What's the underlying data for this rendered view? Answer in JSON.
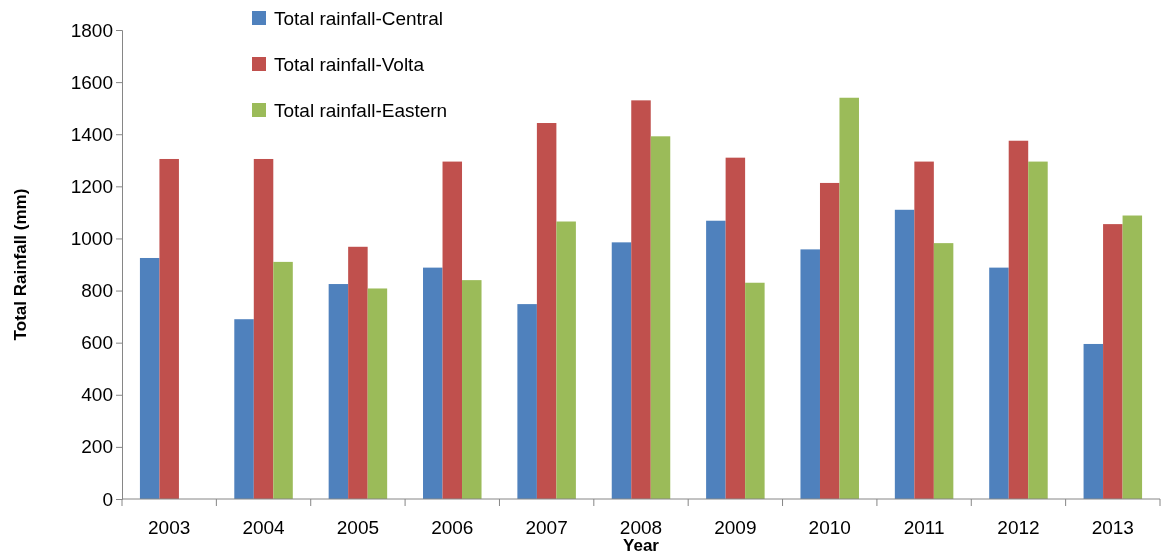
{
  "chart_data": {
    "type": "bar",
    "xlabel": "Year",
    "ylabel": "Total Rainfall (mm)",
    "categories": [
      "2003",
      "2004",
      "2005",
      "2006",
      "2007",
      "2008",
      "2009",
      "2010",
      "2011",
      "2012",
      "2013"
    ],
    "series": [
      {
        "name": "Total rainfall-Central",
        "color": "#4f81bd",
        "values": [
          925,
          690,
          825,
          888,
          748,
          985,
          1068,
          958,
          1110,
          888,
          595
        ]
      },
      {
        "name": "Total rainfall-Volta",
        "color": "#c0504d",
        "values": [
          1305,
          1305,
          968,
          1295,
          1443,
          1530,
          1310,
          1213,
          1295,
          1375,
          1055
        ]
      },
      {
        "name": "Total rainfall-Eastern",
        "color": "#9bbb59",
        "values": [
          null,
          910,
          808,
          840,
          1065,
          1392,
          830,
          1540,
          982,
          1295,
          1088
        ]
      }
    ],
    "ylim": [
      0,
      1800
    ],
    "yticks": [
      0,
      200,
      400,
      600,
      800,
      1000,
      1200,
      1400,
      1600,
      1800
    ],
    "grid": false,
    "legend": "top left"
  }
}
